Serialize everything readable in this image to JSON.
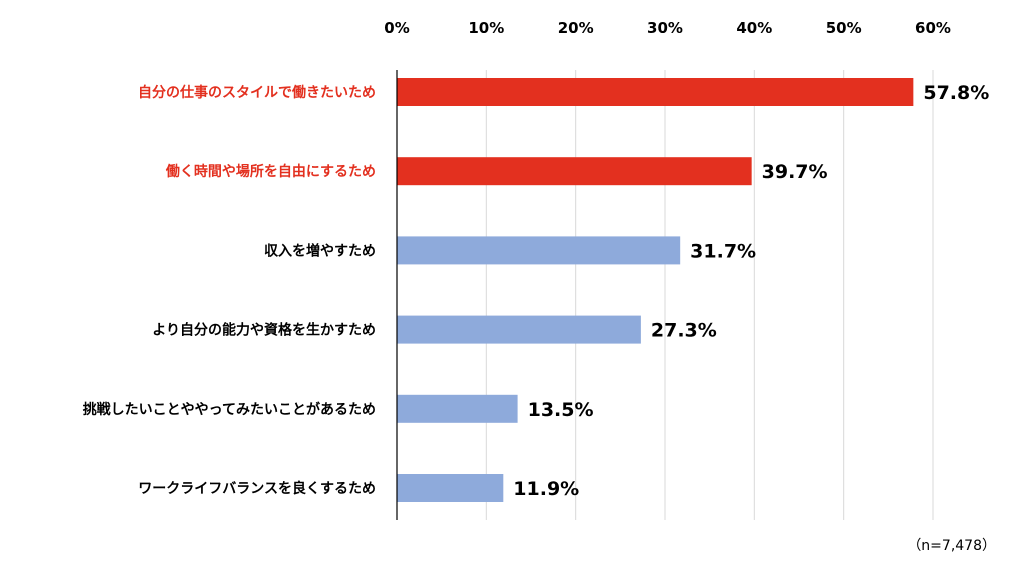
{
  "chart_data": {
    "type": "bar",
    "orientation": "horizontal",
    "categories": [
      "自分の仕事のスタイルで働きたいため",
      "働く時間や場所を自由にするため",
      "収入を増やすため",
      "より自分の能力や資格を生かすため",
      "挑戦したいことややってみたいことがあるため",
      "ワークライフバランスを良くするため"
    ],
    "values": [
      57.8,
      39.7,
      31.7,
      27.3,
      13.5,
      11.9
    ],
    "value_labels": [
      "57.8%",
      "39.7%",
      "31.7%",
      "27.3%",
      "13.5%",
      "11.9%"
    ],
    "highlight": [
      true,
      true,
      false,
      false,
      false,
      false
    ],
    "xlim": [
      0,
      60
    ],
    "xticks": [
      0,
      10,
      20,
      30,
      40,
      50,
      60
    ],
    "xtick_labels": [
      "0%",
      "10%",
      "20%",
      "30%",
      "40%",
      "50%",
      "60%"
    ],
    "xaxis_position": "top",
    "grid": true,
    "colors": {
      "highlight": "#e3301f",
      "normal": "#8eaadb",
      "grid": "#d9d9d9",
      "axis": "#000000",
      "highlight_text": "#e3301f",
      "normal_text": "#000000"
    },
    "note": "（n=7,478）"
  }
}
